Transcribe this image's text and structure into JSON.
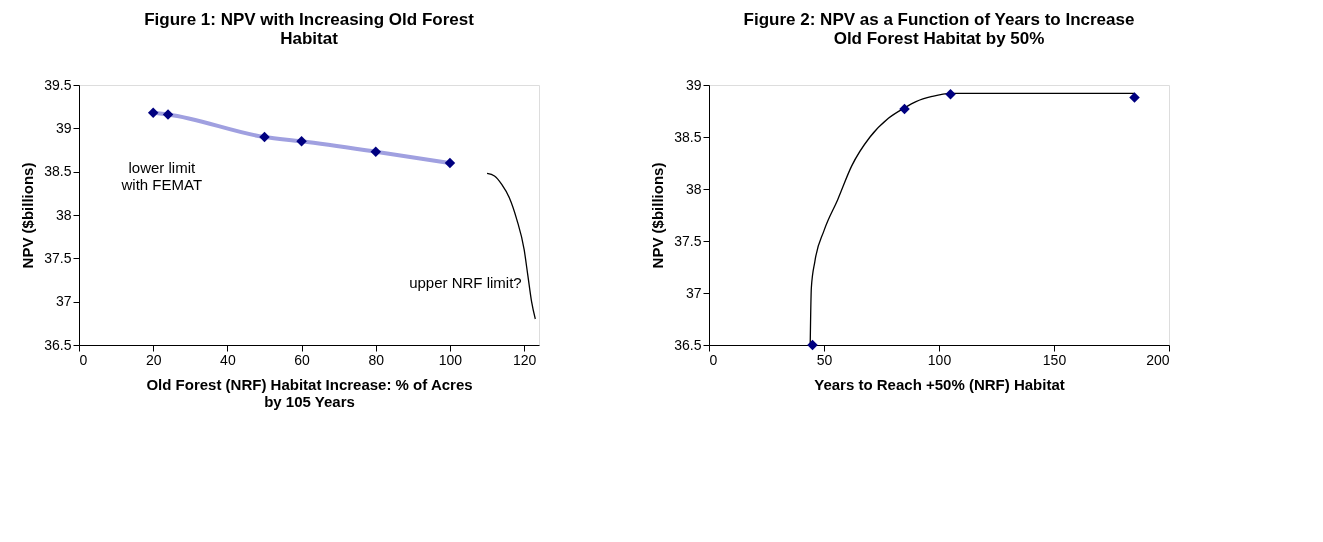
{
  "chart_data": [
    {
      "type": "scatter",
      "title": "Figure 1:  NPV with Increasing Old Forest\nHabitat",
      "xlabel": "Old Forest (NRF) Habitat Increase: % of Acres\nby 105 Years",
      "ylabel": "NPV ($billions)",
      "marker": "diamond",
      "xlim": [
        0,
        124
      ],
      "xticks": [
        0,
        20,
        40,
        60,
        80,
        100,
        120
      ],
      "ylim": [
        36.5,
        39.5
      ],
      "yticks": [
        36.5,
        37,
        37.5,
        38,
        38.5,
        39,
        39.5
      ],
      "series": [
        {
          "type": "line",
          "marker": "none",
          "color": "#a0a0e0",
          "x": [
            20,
            24,
            50,
            60,
            80,
            100
          ],
          "values": [
            39.18,
            39.16,
            38.9,
            38.85,
            38.73,
            38.6
          ]
        },
        {
          "color": "#000080",
          "x": [
            20,
            24,
            50,
            60,
            80,
            100
          ],
          "values": [
            39.18,
            39.16,
            38.9,
            38.85,
            38.73,
            38.6
          ]
        },
        {
          "type": "line",
          "marker": "none",
          "color": "#000000",
          "x": [
            110,
            112,
            114,
            116,
            118,
            120,
            121,
            122,
            123
          ],
          "values": [
            38.48,
            38.45,
            38.35,
            38.2,
            37.95,
            37.6,
            37.3,
            37.0,
            36.8
          ]
        }
      ],
      "annotations": [
        "lower limit\nwith FEMAT",
        "upper NRF limit?"
      ]
    },
    {
      "type": "scatter",
      "title": "Figure 2:  NPV as a Function of Years to Increase\nOld Forest Habitat by 50%",
      "xlabel": "Years to Reach +50% (NRF) Habitat",
      "ylabel": "NPV    ($billions)",
      "marker": "diamond",
      "xlim": [
        0,
        200
      ],
      "xticks": [
        0,
        50,
        100,
        150,
        200
      ],
      "ylim": [
        36.5,
        39
      ],
      "yticks": [
        36.5,
        37,
        37.5,
        38,
        38.5,
        39
      ],
      "series": [
        {
          "type": "line",
          "marker": "none",
          "color": "#000000",
          "x": [
            44,
            44.5,
            46,
            50,
            56,
            62,
            70,
            78,
            85,
            90,
            97,
            105,
            185
          ],
          "values": [
            36.5,
            37.05,
            37.3,
            37.6,
            37.9,
            38.22,
            38.5,
            38.68,
            38.78,
            38.84,
            38.89,
            38.92,
            38.92
          ]
        },
        {
          "color": "#000080",
          "x": [
            45,
            85,
            105,
            185
          ],
          "values": [
            36.5,
            38.77,
            38.91,
            38.88
          ]
        }
      ]
    }
  ]
}
